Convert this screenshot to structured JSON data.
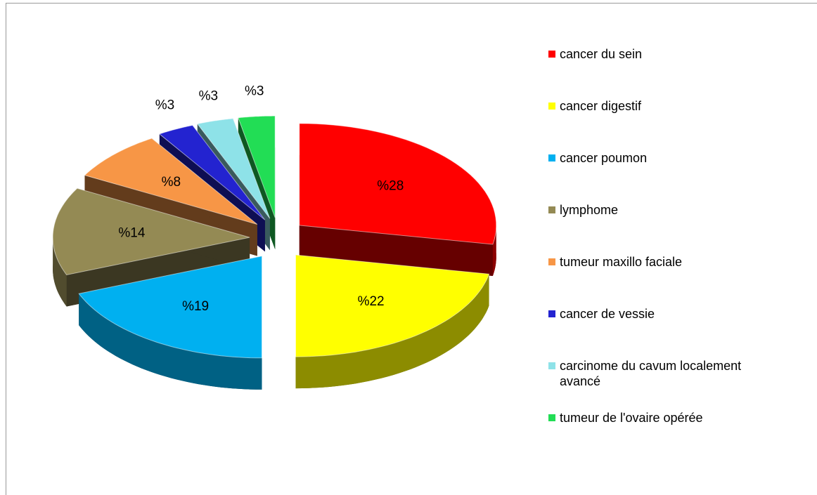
{
  "chart_data": {
    "type": "pie",
    "categories": [
      "cancer du sein",
      "cancer digestif",
      "cancer poumon",
      "lymphome",
      "tumeur maxillo faciale",
      "cancer de vessie",
      "carcinome du cavum localement avancé",
      "tumeur de l'ovaire opérée"
    ],
    "values": [
      28,
      22,
      19,
      14,
      8,
      3,
      3,
      3
    ],
    "value_labels": [
      "%28",
      "%22",
      "%19",
      "%14",
      "%8",
      "%3",
      "%3",
      "%3"
    ],
    "colors": [
      "#ff0000",
      "#ffff00",
      "#00b0f0",
      "#948a54",
      "#f79646",
      "#2323d0",
      "#8ee2e8",
      "#22dd55"
    ],
    "legend": "right"
  }
}
